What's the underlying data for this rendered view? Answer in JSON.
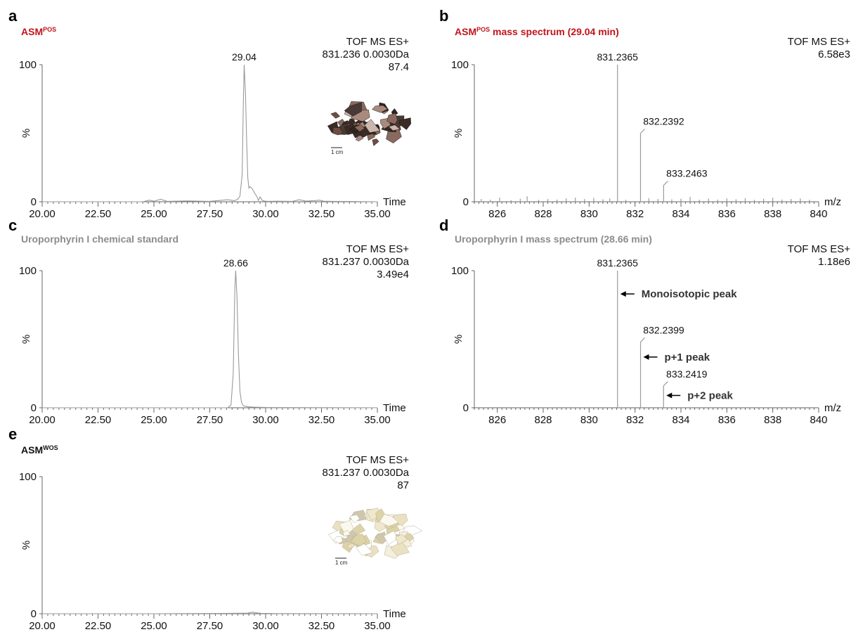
{
  "colors": {
    "red_title": "#c0141a",
    "grey_title": "#8c8c8c",
    "trace": "#9a9a9a"
  },
  "chart_data": [
    {
      "panel": "a",
      "type": "line",
      "title": "ASM",
      "title_sup": "POS",
      "title_color": "#c0141a",
      "info_lines": [
        "TOF MS ES+",
        "831.236 0.0030Da",
        "87.4"
      ],
      "xlabel": "Time",
      "ylabel": "%",
      "xlim": [
        20.0,
        35.0
      ],
      "ylim": [
        0,
        100
      ],
      "x_ticks": [
        "20.00",
        "22.50",
        "25.00",
        "27.50",
        "30.00",
        "32.50",
        "35.00"
      ],
      "y_ticks": [
        "0",
        "100"
      ],
      "peak_labels": [
        {
          "x": 29.04,
          "text": "29.04"
        }
      ],
      "image": "dark-crystals-photo",
      "image_scale_label": "1 cm",
      "x": [
        20.0,
        21.5,
        23.0,
        24.5,
        24.8,
        25.0,
        25.3,
        25.6,
        26.5,
        27.5,
        28.3,
        28.6,
        28.75,
        28.85,
        28.95,
        29.0,
        29.04,
        29.1,
        29.15,
        29.2,
        29.25,
        29.3,
        29.38,
        29.45,
        29.52,
        29.6,
        29.68,
        29.75,
        29.85,
        29.95,
        30.1,
        30.5,
        31.2,
        31.5,
        31.8,
        32.2,
        32.4,
        32.6,
        33.0,
        34.0,
        35.0
      ],
      "y": [
        0,
        0,
        0,
        0,
        1.2,
        0.4,
        1.8,
        0.3,
        0.6,
        0.3,
        1.5,
        0.8,
        1.8,
        4,
        20,
        70,
        100,
        78,
        45,
        18,
        10,
        11,
        10,
        8,
        6,
        4,
        1,
        3.5,
        1,
        0.5,
        0.3,
        0.4,
        0.3,
        1.5,
        0.5,
        0.8,
        1.2,
        0.4,
        0.3,
        0.2,
        0
      ]
    },
    {
      "panel": "b",
      "type": "bar",
      "title": "ASM",
      "title_sup": "POS",
      "title_rest": " mass spectrum (29.04 min)",
      "title_color": "#c0141a",
      "info_lines": [
        "TOF MS ES+",
        "6.58e3"
      ],
      "xlabel": "m/z",
      "ylabel": "%",
      "xlim": [
        825,
        840
      ],
      "ylim": [
        0,
        100
      ],
      "x_ticks": [
        "826",
        "828",
        "830",
        "832",
        "834",
        "836",
        "838",
        "840"
      ],
      "y_ticks": [
        "0",
        "100"
      ],
      "peaks": [
        {
          "mz": 831.2365,
          "intensity": 100,
          "label": "831.2365"
        },
        {
          "mz": 832.2392,
          "intensity": 50,
          "label": "832.2392"
        },
        {
          "mz": 833.2463,
          "intensity": 12,
          "label": "833.2463"
        }
      ],
      "noise": [
        [
          825.3,
          2
        ],
        [
          825.7,
          1.5
        ],
        [
          826.1,
          3
        ],
        [
          826.6,
          1.2
        ],
        [
          827.0,
          2.2
        ],
        [
          827.3,
          4
        ],
        [
          827.8,
          1.4
        ],
        [
          828.2,
          2
        ],
        [
          828.6,
          1.6
        ],
        [
          829.0,
          2.5
        ],
        [
          829.4,
          3
        ],
        [
          829.8,
          2
        ],
        [
          830.2,
          2.8
        ],
        [
          830.6,
          1.8
        ],
        [
          830.9,
          2.4
        ],
        [
          831.6,
          1.5
        ],
        [
          832.6,
          2.6
        ],
        [
          833.0,
          2
        ],
        [
          833.6,
          1.8
        ],
        [
          834.0,
          2.2
        ],
        [
          834.4,
          3.5
        ],
        [
          834.8,
          1.5
        ],
        [
          835.2,
          2.3
        ],
        [
          835.6,
          1.6
        ],
        [
          836.0,
          2.4
        ],
        [
          836.4,
          1.8
        ],
        [
          836.8,
          2.6
        ],
        [
          837.2,
          1.4
        ],
        [
          837.6,
          2.2
        ],
        [
          838.0,
          3
        ],
        [
          838.4,
          1.6
        ],
        [
          838.8,
          2
        ],
        [
          839.2,
          2.4
        ],
        [
          839.6,
          1.4
        ]
      ]
    },
    {
      "panel": "c",
      "type": "line",
      "title": "Uroporphyrin I chemical standard",
      "title_color": "#8c8c8c",
      "info_lines": [
        "TOF MS ES+",
        "831.237 0.0030Da",
        "3.49e4"
      ],
      "xlabel": "Time",
      "ylabel": "%",
      "xlim": [
        20.0,
        35.0
      ],
      "ylim": [
        0,
        100
      ],
      "x_ticks": [
        "20.00",
        "22.50",
        "25.00",
        "27.50",
        "30.00",
        "32.50",
        "35.00"
      ],
      "y_ticks": [
        "0",
        "100"
      ],
      "peak_labels": [
        {
          "x": 28.66,
          "text": "28.66"
        }
      ],
      "x": [
        20.0,
        27.0,
        28.3,
        28.45,
        28.55,
        28.62,
        28.66,
        28.72,
        28.78,
        28.85,
        28.92,
        29.0,
        29.15,
        29.4,
        30.0,
        35.0
      ],
      "y": [
        0,
        0,
        0,
        2,
        25,
        85,
        100,
        80,
        40,
        12,
        4,
        1.5,
        0.8,
        0.5,
        0.2,
        0
      ]
    },
    {
      "panel": "d",
      "type": "bar",
      "title": "Uroporphyrin I mass spectrum (28.66 min)",
      "title_color": "#8c8c8c",
      "info_lines": [
        "TOF MS ES+",
        "1.18e6"
      ],
      "xlabel": "m/z",
      "ylabel": "%",
      "xlim": [
        825,
        840
      ],
      "ylim": [
        0,
        100
      ],
      "x_ticks": [
        "826",
        "828",
        "830",
        "832",
        "834",
        "836",
        "838",
        "840"
      ],
      "y_ticks": [
        "0",
        "100"
      ],
      "peaks": [
        {
          "mz": 831.2365,
          "intensity": 100,
          "label": "831.2365"
        },
        {
          "mz": 832.2399,
          "intensity": 48,
          "label": "832.2399"
        },
        {
          "mz": 833.2419,
          "intensity": 16,
          "label": "833.2419"
        }
      ],
      "annotations": [
        {
          "text": "Monoisotopic peak",
          "intensity": 83
        },
        {
          "text": "p+1 peak",
          "intensity": 37
        },
        {
          "text": "p+2 peak",
          "intensity": 9
        }
      ]
    },
    {
      "panel": "e",
      "type": "line",
      "title": "ASM",
      "title_sup": "WOS",
      "title_color": "#111111",
      "info_lines": [
        "TOF MS ES+",
        "831.237 0.0030Da",
        "87"
      ],
      "xlabel": "Time",
      "ylabel": "%",
      "xlim": [
        20.0,
        35.0
      ],
      "ylim": [
        0,
        100
      ],
      "x_ticks": [
        "20.00",
        "22.50",
        "25.00",
        "27.50",
        "30.00",
        "32.50",
        "35.00"
      ],
      "y_ticks": [
        "0",
        "100"
      ],
      "image": "white-crystals-photo",
      "image_scale_label": "1 cm",
      "x": [
        20.0,
        25.0,
        28.0,
        29.2,
        29.4,
        29.6,
        29.8,
        30.5,
        35.0
      ],
      "y": [
        0,
        0,
        0.2,
        0.4,
        1.2,
        0.6,
        0.3,
        0.1,
        0
      ]
    }
  ]
}
